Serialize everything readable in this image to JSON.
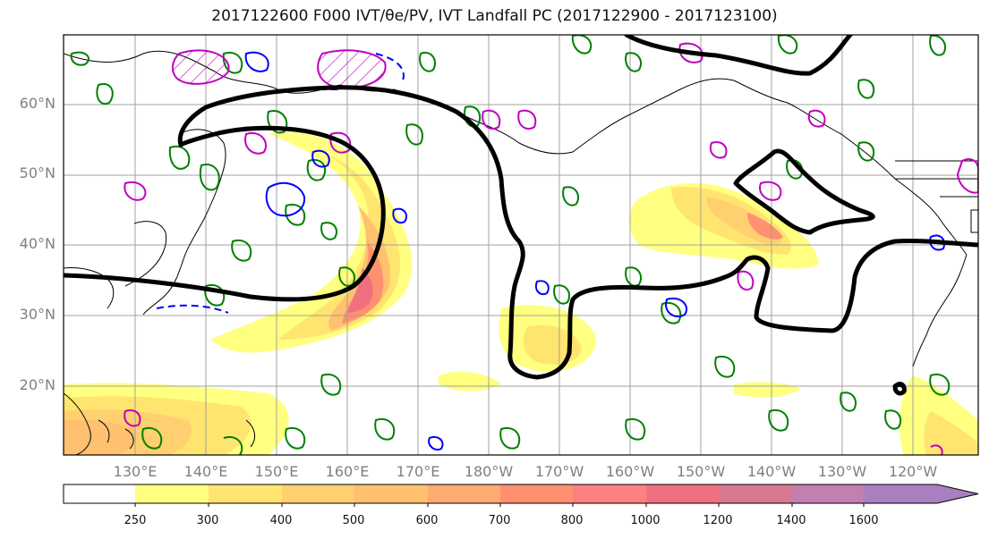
{
  "map": {
    "title": "2017122600 F000 IVT/θe/PV, IVT Landfall PC (2017122900 - 2017123100)",
    "latitude_labels": [
      "60°N",
      "50°N",
      "40°N",
      "30°N",
      "20°N"
    ],
    "longitude_labels": [
      "130°E",
      "140°E",
      "150°E",
      "160°E",
      "170°E",
      "180°W",
      "170°W",
      "160°W",
      "150°W",
      "140°W",
      "130°W",
      "120°W"
    ],
    "colorbar": {
      "levels": [
        "250",
        "300",
        "400",
        "500",
        "600",
        "700",
        "800",
        "1000",
        "1200",
        "1400",
        "1600"
      ],
      "colors": [
        "#ffff80",
        "#ffe570",
        "#ffd070",
        "#ffc070",
        "#ffaa70",
        "#ff9070",
        "#ff8080",
        "#f07080",
        "#d87890",
        "#c080b0",
        "#a880c0"
      ]
    },
    "legend_colors": {
      "ivt_landfall_pc": "#000000",
      "theta_e": "#008000",
      "pv_positive": "#c000c0",
      "pv_negative": "#0000ff"
    }
  }
}
